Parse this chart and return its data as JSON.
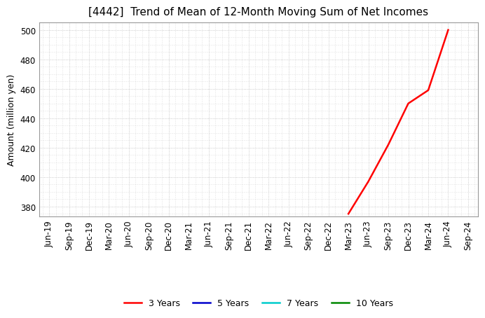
{
  "title": "[4442]  Trend of Mean of 12-Month Moving Sum of Net Incomes",
  "ylabel": "Amount (million yen)",
  "ylim": [
    373,
    505
  ],
  "yticks": [
    380,
    400,
    420,
    440,
    460,
    480,
    500
  ],
  "background_color": "#ffffff",
  "plot_bg_color": "#ffffff",
  "grid_color": "#bbbbbb",
  "line_3y_color": "#ff0000",
  "line_5y_color": "#0000cc",
  "line_7y_color": "#00cccc",
  "line_10y_color": "#008800",
  "legend_labels": [
    "3 Years",
    "5 Years",
    "7 Years",
    "10 Years"
  ],
  "x_labels": [
    "Jun-19",
    "Sep-19",
    "Dec-19",
    "Mar-20",
    "Jun-20",
    "Sep-20",
    "Dec-20",
    "Mar-21",
    "Jun-21",
    "Sep-21",
    "Dec-21",
    "Mar-22",
    "Jun-22",
    "Sep-22",
    "Dec-22",
    "Mar-23",
    "Jun-23",
    "Sep-23",
    "Dec-23",
    "Mar-24",
    "Jun-24",
    "Sep-24"
  ],
  "3y_data_x": [
    "Mar-23",
    "Jun-23",
    "Sep-23",
    "Dec-23",
    "Mar-24",
    "Jun-24"
  ],
  "3y_data_y": [
    375,
    397,
    422,
    450,
    459,
    500
  ],
  "title_fontsize": 11,
  "axis_fontsize": 9,
  "tick_fontsize": 8.5,
  "legend_fontsize": 9
}
